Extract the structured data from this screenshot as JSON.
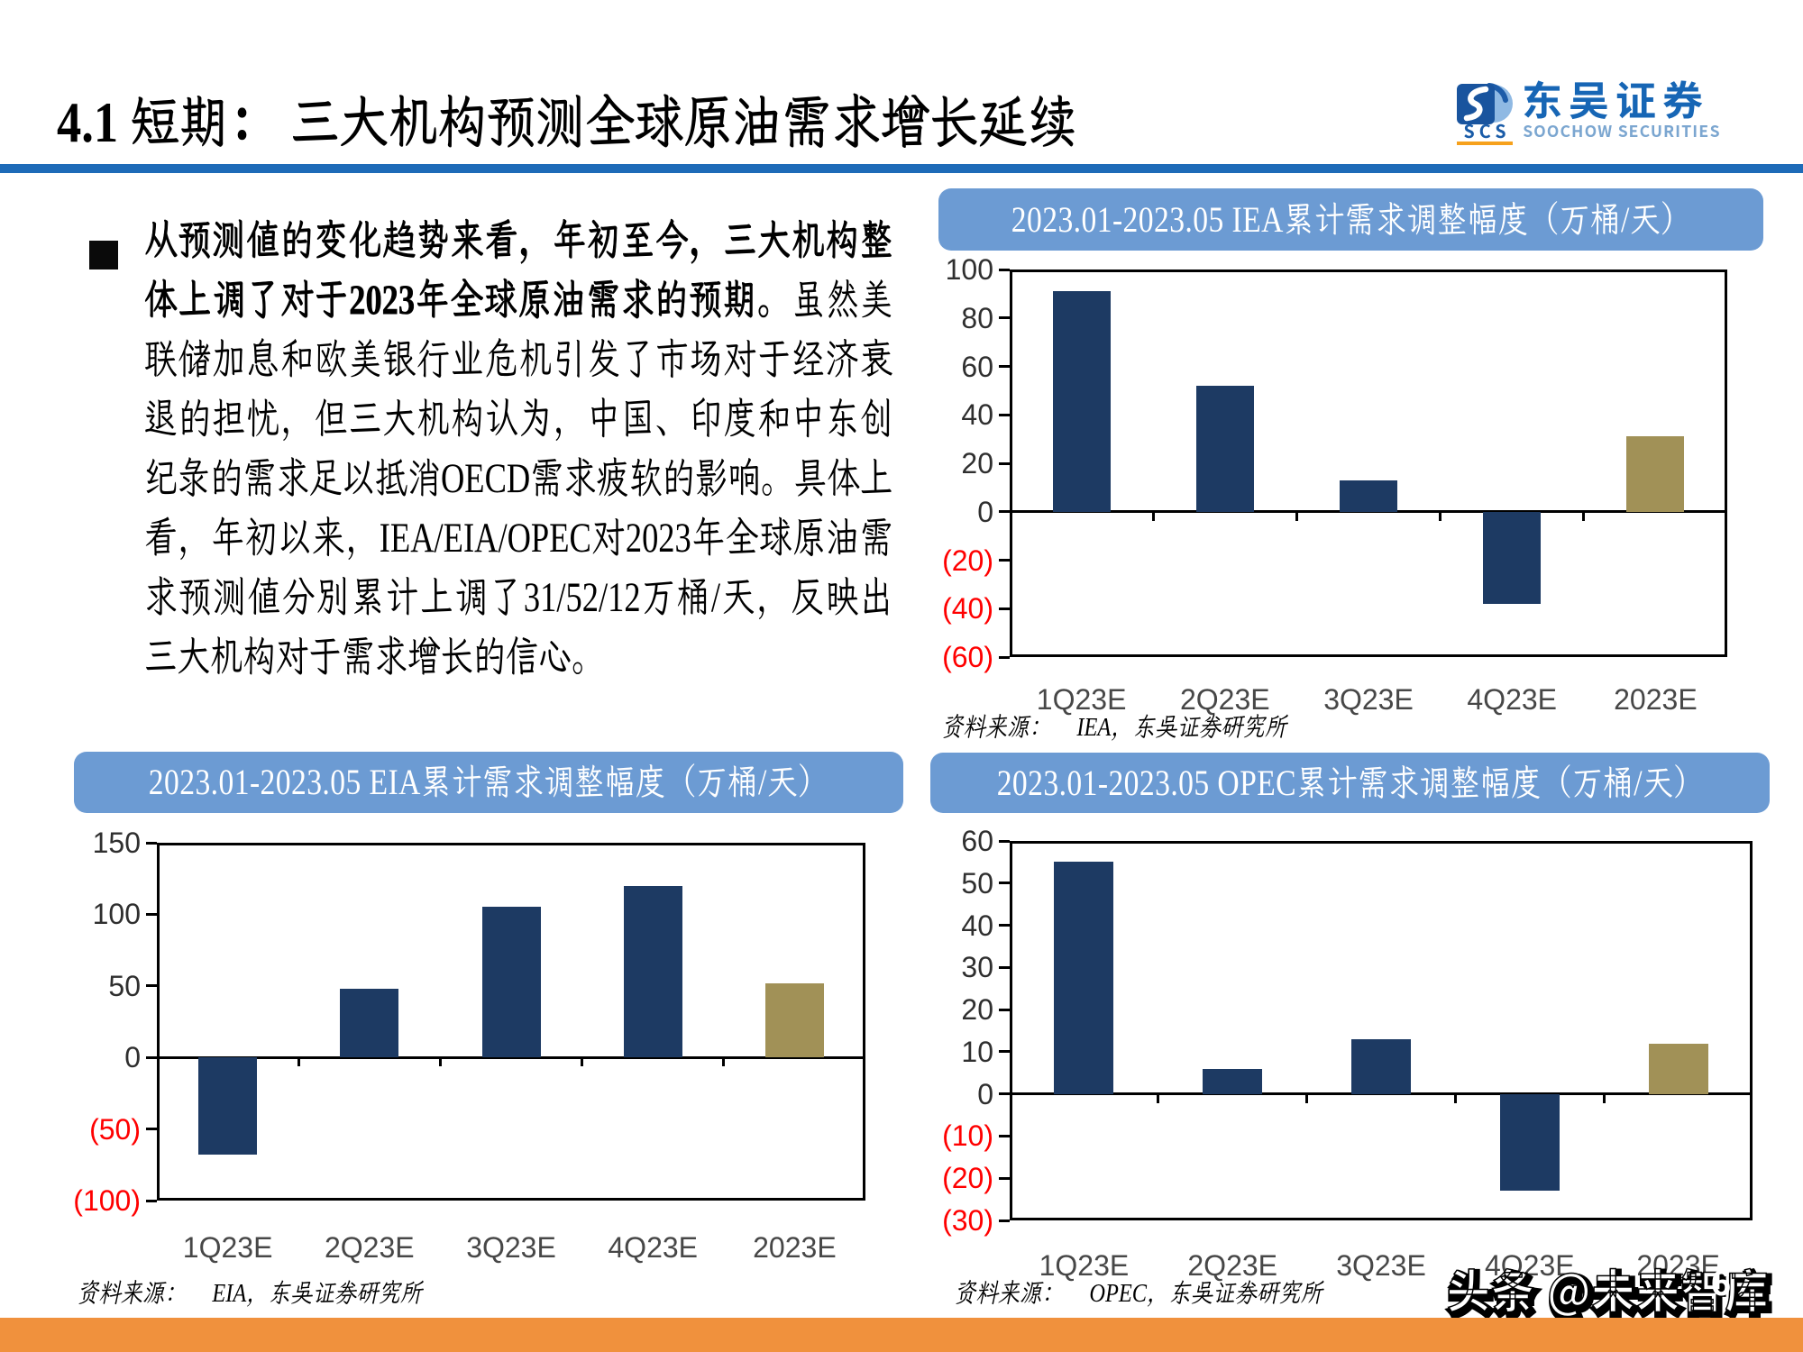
{
  "header": {
    "section_title": "4.1 短期： 三大机构预测全球原油需求增长延续",
    "logo": {
      "abbr": "SCS",
      "zh": "东吴证券",
      "en": "SOOCHOW SECURITIES",
      "icon": "scs-logo-icon"
    }
  },
  "bullet": {
    "marker": "■",
    "bold_text": "从预测值的变化趋势来看，年初至今，三大机构整体上调了对于2023年全球原油需求的预期。",
    "rest_text": "虽然美联储加息和欧美银行业危机引发了市场对于经济衰退的担忧，但三大机构认为，中国、印度和中东创纪录的需求足以抵消OECD需求疲软的影响。具体上看，年初以来，IEA/EIA/OPEC对2023年全球原油需求预测值分别累计上调了31/52/12万桶/天，反映出三大机构对于需求增长的信心。"
  },
  "chart_data": [
    {
      "id": "iea",
      "type": "bar",
      "title": "2023.01-2023.05 IEA累计需求调整幅度（万桶/天）",
      "categories": [
        "1Q23E",
        "2Q23E",
        "3Q23E",
        "4Q23E",
        "2023E"
      ],
      "values": [
        91,
        52,
        13,
        -38,
        31
      ],
      "bar_colors": [
        "#1D3A63",
        "#1D3A63",
        "#1D3A63",
        "#1D3A63",
        "#A19157"
      ],
      "ylim": [
        -60,
        100
      ],
      "ytick_step": 20,
      "grid": false,
      "legend": null,
      "xlabel": "",
      "ylabel": "",
      "source_label": "资料来源：",
      "source": "IEA，东吴证券研究所"
    },
    {
      "id": "eia",
      "type": "bar",
      "title": "2023.01-2023.05 EIA累计需求调整幅度（万桶/天）",
      "categories": [
        "1Q23E",
        "2Q23E",
        "3Q23E",
        "4Q23E",
        "2023E"
      ],
      "values": [
        -68,
        48,
        105,
        120,
        52
      ],
      "bar_colors": [
        "#1D3A63",
        "#1D3A63",
        "#1D3A63",
        "#1D3A63",
        "#A19157"
      ],
      "ylim": [
        -100,
        150
      ],
      "ytick_step": 50,
      "grid": false,
      "legend": null,
      "xlabel": "",
      "ylabel": "",
      "source_label": "资料来源：",
      "source": "EIA，东吴证券研究所"
    },
    {
      "id": "opec",
      "type": "bar",
      "title": "2023.01-2023.05 OPEC累计需求调整幅度（万桶/天）",
      "categories": [
        "1Q23E",
        "2Q23E",
        "3Q23E",
        "4Q23E",
        "2023E"
      ],
      "values": [
        55,
        6,
        13,
        -23,
        12
      ],
      "bar_colors": [
        "#1D3A63",
        "#1D3A63",
        "#1D3A63",
        "#1D3A63",
        "#A19157"
      ],
      "ylim": [
        -30,
        60
      ],
      "ytick_step": 10,
      "grid": false,
      "legend": null,
      "xlabel": "",
      "ylabel": "",
      "source_label": "资料来源：",
      "source": "OPEC，东吴证券研究所"
    }
  ],
  "footer": {
    "watermark": "头条 @未来智库",
    "page_number": "6"
  },
  "colors": {
    "divider_blue": "#1E6BB8",
    "chart_header_bg": "#6C9BD3",
    "bar_navy": "#1D3A63",
    "bar_gold": "#A19157",
    "negative_label_red": "#FF0000",
    "footer_orange": "#F0913D",
    "logo_orange": "#F6A11C",
    "logo_blue": "#1766B5",
    "logo_light_blue": "#7BA6D0"
  }
}
